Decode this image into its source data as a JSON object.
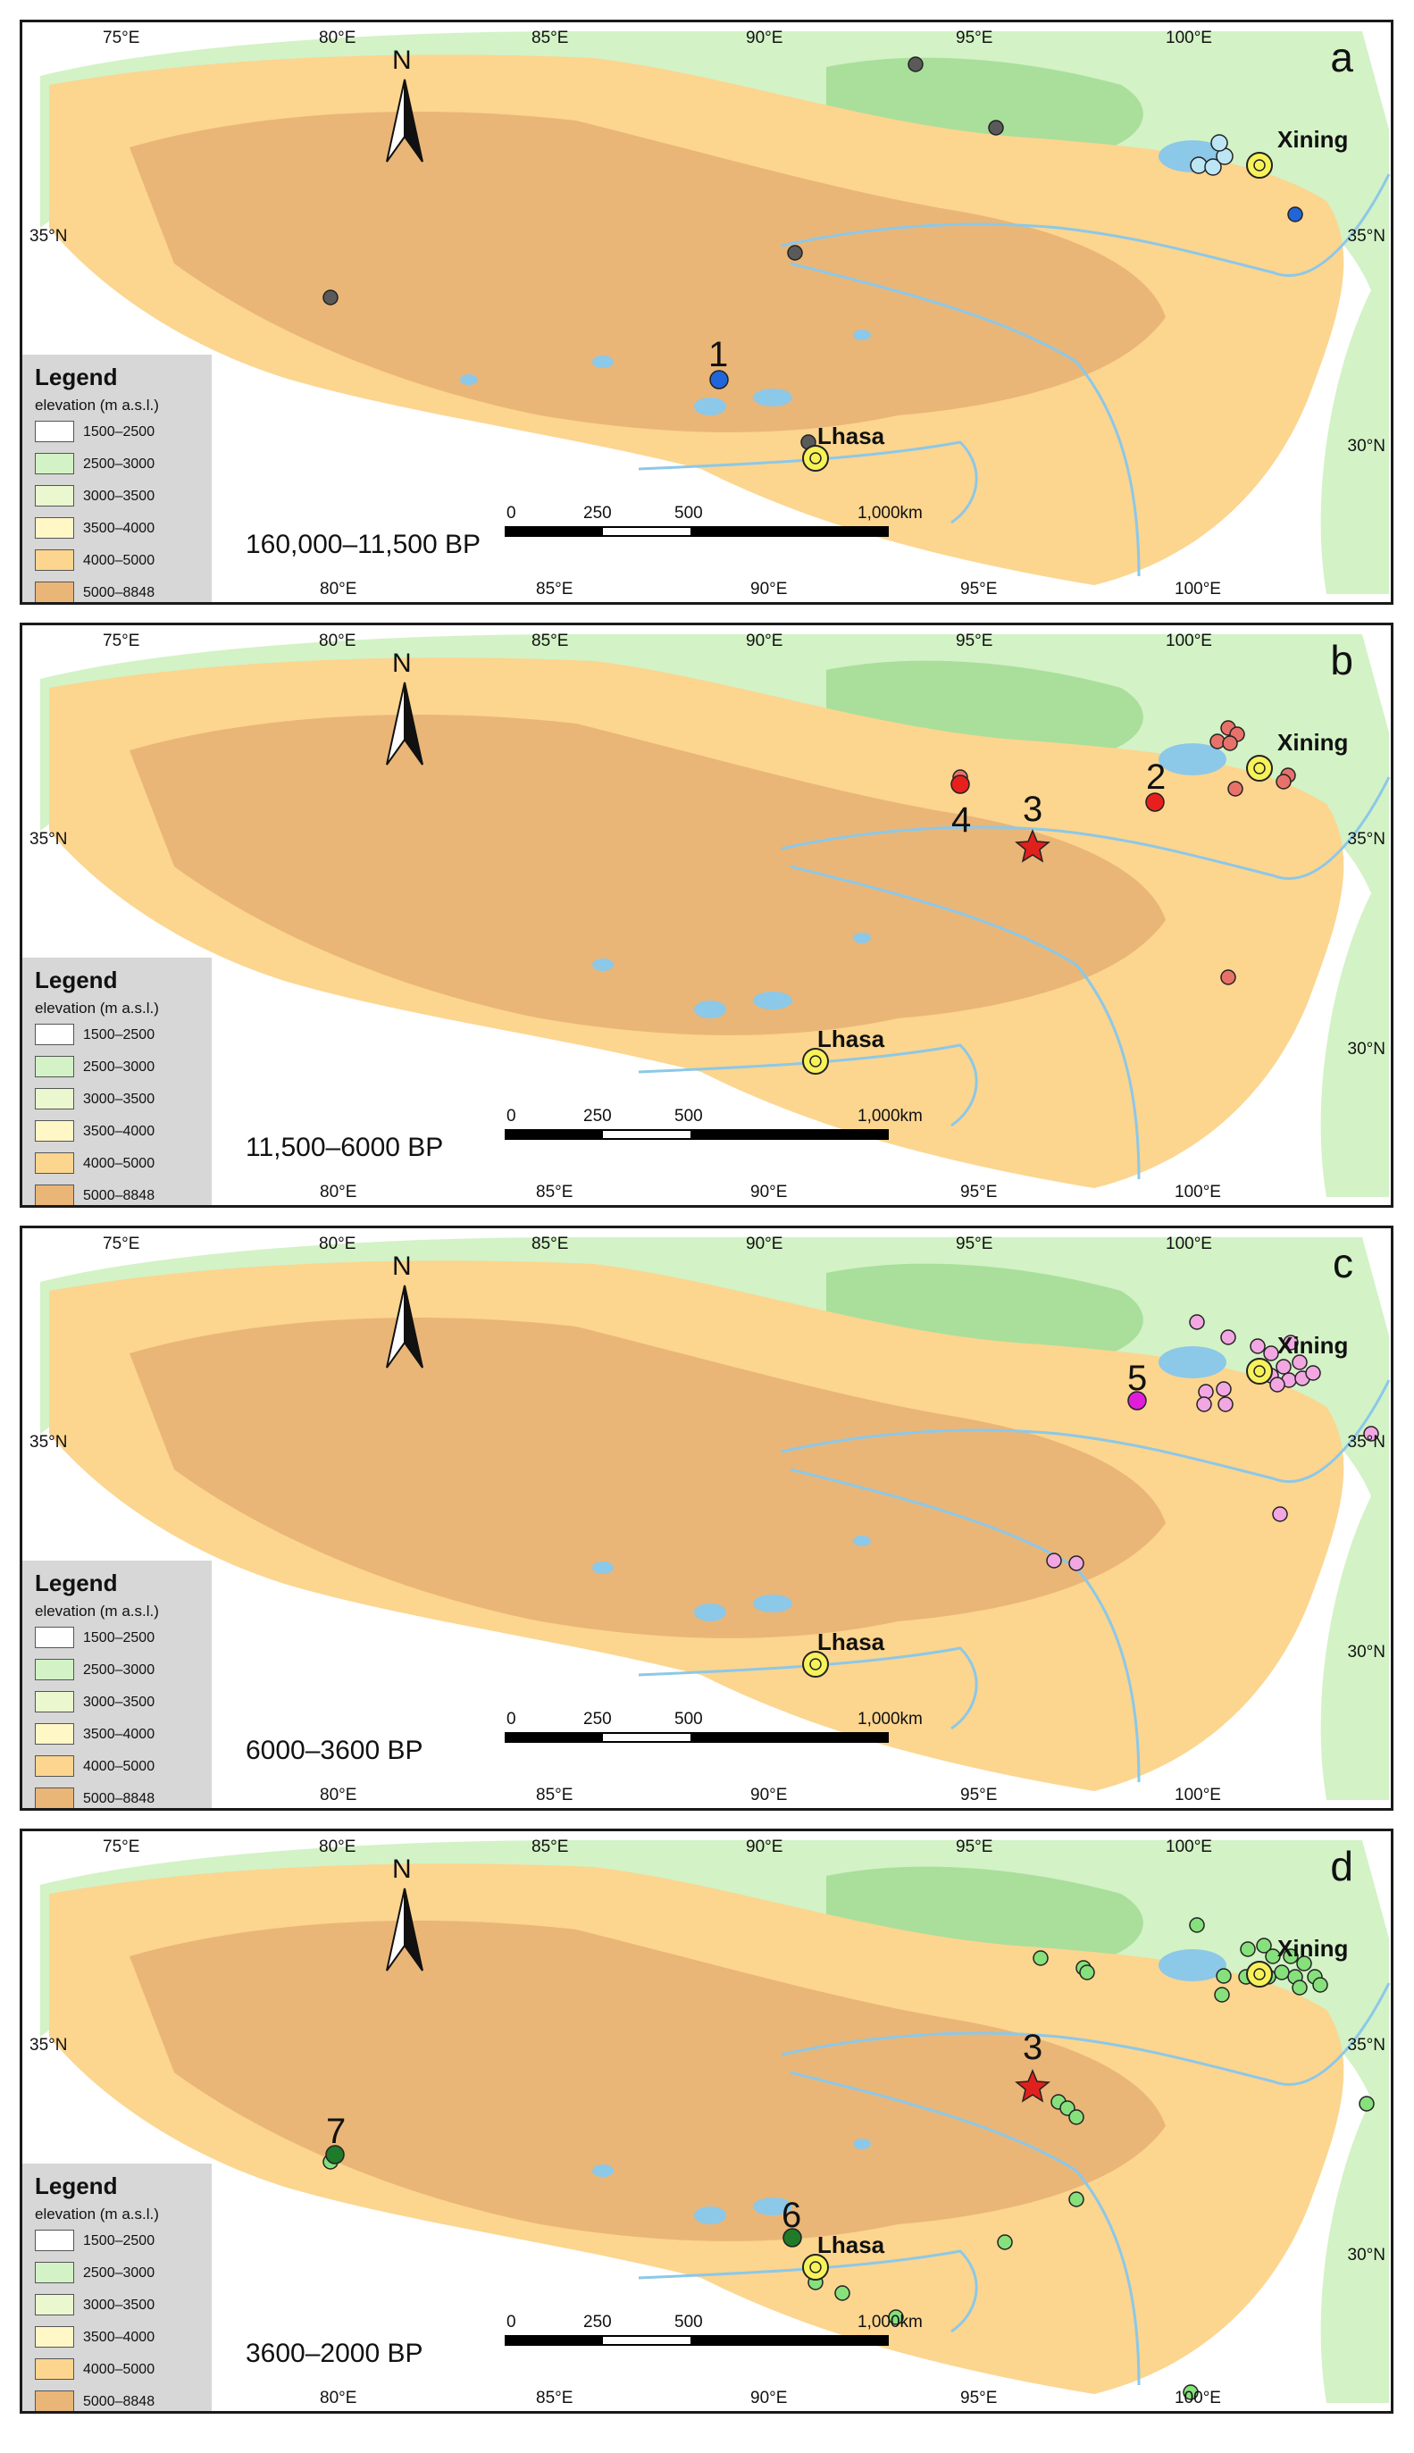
{
  "figure": {
    "axes": {
      "top_lon_labels": [
        "75°E",
        "80°E",
        "85°E",
        "90°E",
        "95°E",
        "100°E"
      ],
      "bottom_lon_labels": [
        "80°E",
        "85°E",
        "90°E",
        "95°E",
        "100°E"
      ],
      "lat_labels": [
        "35°N",
        "30°N"
      ]
    },
    "north_arrow": "N",
    "legend": {
      "title": "Legend",
      "subtitle": "elevation (m a.s.l.)",
      "classes": [
        {
          "label": "1500–2500",
          "color": "#ffffff"
        },
        {
          "label": "2500–3000",
          "color": "#d3f2c6"
        },
        {
          "label": "3000–3500",
          "color": "#eaf7cf"
        },
        {
          "label": "3500–4000",
          "color": "#fff7c6"
        },
        {
          "label": "4000–5000",
          "color": "#fcd58f"
        },
        {
          "label": "5000–8848",
          "color": "#e9b678"
        }
      ]
    },
    "scale_bar": {
      "ticks": [
        "0",
        "250",
        "500",
        "1,000km"
      ]
    },
    "cities": {
      "xining": "Xining",
      "lhasa": "Lhasa"
    },
    "panels": [
      {
        "letter": "a",
        "period": "160,000–11,500 BP",
        "site_color": "#5a5a5a",
        "numbered_sites": [
          {
            "num": "1",
            "color": "#2166d9"
          }
        ],
        "other_colors": {
          "blue": "#2166d9",
          "lightblue": "#bde6f5"
        }
      },
      {
        "letter": "b",
        "period": "11,500–6000 BP",
        "site_color": "#e8726a",
        "numbered_sites": [
          {
            "num": "2",
            "color": "#e8201d"
          },
          {
            "num": "3",
            "symbol": "star",
            "color": "#e0201d"
          },
          {
            "num": "4",
            "color": "#e8201d"
          }
        ]
      },
      {
        "letter": "c",
        "period": "6000–3600 BP",
        "site_color": "#f2a7e3",
        "numbered_sites": [
          {
            "num": "5",
            "color": "#e01ed9"
          }
        ]
      },
      {
        "letter": "d",
        "period": "3600–2000 BP",
        "site_color": "#86e07c",
        "numbered_sites": [
          {
            "num": "3",
            "symbol": "star",
            "color": "#e0201d"
          },
          {
            "num": "6",
            "color": "#1f7a2a"
          },
          {
            "num": "7",
            "color": "#1f7a2a"
          }
        ]
      }
    ]
  }
}
